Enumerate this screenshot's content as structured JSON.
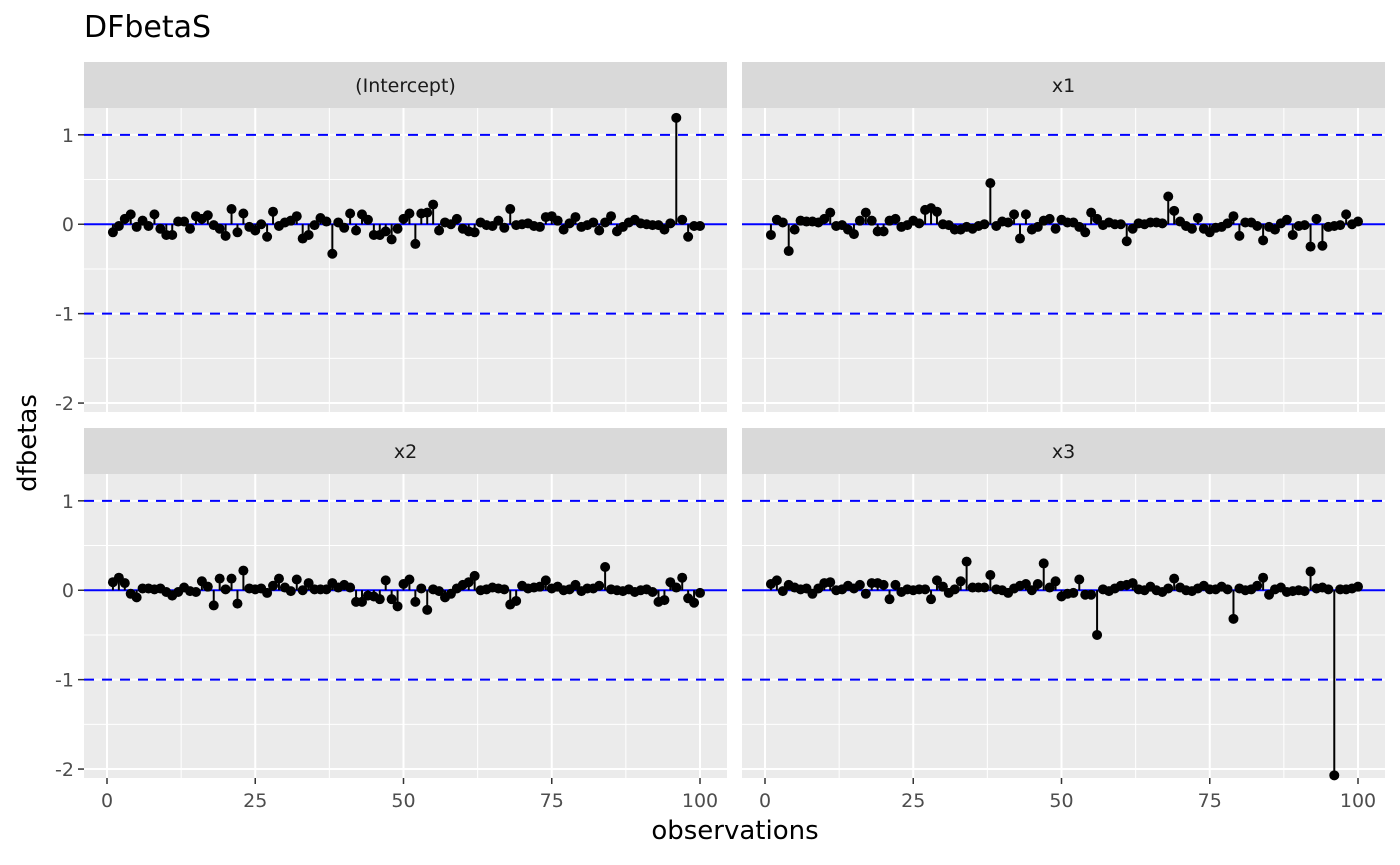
{
  "chart_data": {
    "type": "scatter",
    "title": "DFbetaS",
    "xlabel": "observations",
    "ylabel": "dfbetas",
    "xlim": [
      0,
      100
    ],
    "ylim": [
      -2.1,
      1.3
    ],
    "x_ticks": [
      0,
      25,
      50,
      75,
      100
    ],
    "y_ticks": [
      -2,
      -1,
      0,
      1
    ],
    "reference_lines": {
      "solid": 0,
      "dashed": [
        -1,
        1
      ],
      "color": "#0000ff"
    },
    "grid": true,
    "panel_background": "#ebebeb",
    "strip_background": "#d9d9d9",
    "point_color": "#000000",
    "panels": [
      {
        "name": "(Intercept)",
        "values": [
          -0.09,
          -0.02,
          0.06,
          0.11,
          -0.03,
          0.04,
          -0.02,
          0.11,
          -0.05,
          -0.12,
          -0.12,
          0.03,
          0.03,
          -0.05,
          0.09,
          0.06,
          0.1,
          -0.01,
          -0.05,
          -0.13,
          0.17,
          -0.09,
          0.12,
          -0.03,
          -0.07,
          0.0,
          -0.14,
          0.14,
          -0.02,
          0.02,
          0.04,
          0.09,
          -0.16,
          -0.12,
          -0.01,
          0.07,
          0.03,
          -0.33,
          0.02,
          -0.04,
          0.12,
          -0.07,
          0.11,
          0.05,
          -0.12,
          -0.12,
          -0.08,
          -0.17,
          -0.05,
          0.06,
          0.12,
          -0.22,
          0.12,
          0.13,
          0.22,
          -0.07,
          0.02,
          0.0,
          0.06,
          -0.05,
          -0.08,
          -0.09,
          0.02,
          -0.01,
          -0.02,
          0.04,
          -0.04,
          0.17,
          -0.01,
          0.0,
          0.01,
          -0.02,
          -0.03,
          0.08,
          0.09,
          0.04,
          -0.06,
          0.01,
          0.08,
          -0.03,
          -0.01,
          0.02,
          -0.07,
          0.02,
          0.09,
          -0.08,
          -0.03,
          0.02,
          0.05,
          0.01,
          0.0,
          -0.01,
          -0.01,
          -0.06,
          0.01,
          1.19,
          0.05,
          -0.14,
          -0.02,
          -0.02
        ]
      },
      {
        "name": "x1",
        "values": [
          -0.12,
          0.05,
          0.02,
          -0.3,
          -0.06,
          0.04,
          0.03,
          0.03,
          0.02,
          0.06,
          0.13,
          -0.02,
          -0.01,
          -0.06,
          -0.11,
          0.04,
          0.13,
          0.04,
          -0.08,
          -0.08,
          0.04,
          0.06,
          -0.03,
          -0.01,
          0.04,
          0.01,
          0.16,
          0.18,
          0.14,
          0.0,
          -0.01,
          -0.06,
          -0.06,
          -0.03,
          -0.05,
          -0.02,
          0.0,
          0.46,
          -0.02,
          0.03,
          0.02,
          0.11,
          -0.16,
          0.11,
          -0.06,
          -0.03,
          0.04,
          0.06,
          -0.05,
          0.05,
          0.02,
          0.02,
          -0.03,
          -0.09,
          0.13,
          0.06,
          -0.01,
          0.02,
          0.0,
          0.0,
          -0.19,
          -0.05,
          0.01,
          0.0,
          0.02,
          0.02,
          0.01,
          0.31,
          0.15,
          0.03,
          -0.02,
          -0.05,
          0.07,
          -0.05,
          -0.09,
          -0.04,
          -0.03,
          0.01,
          0.09,
          -0.13,
          0.02,
          0.02,
          -0.02,
          -0.18,
          -0.03,
          -0.06,
          0.01,
          0.05,
          -0.12,
          -0.02,
          -0.01,
          -0.25,
          0.06,
          -0.24,
          -0.03,
          -0.02,
          -0.01,
          0.11,
          0.0,
          0.03
        ]
      },
      {
        "name": "x2",
        "values": [
          0.09,
          0.14,
          0.08,
          -0.04,
          -0.08,
          0.02,
          0.02,
          0.01,
          0.02,
          -0.02,
          -0.06,
          -0.02,
          0.03,
          -0.01,
          -0.02,
          0.1,
          0.04,
          -0.17,
          0.13,
          0.01,
          0.13,
          -0.15,
          0.22,
          0.02,
          0.01,
          0.02,
          -0.03,
          0.05,
          0.13,
          0.03,
          -0.01,
          0.12,
          0.0,
          0.08,
          0.01,
          0.01,
          0.01,
          0.08,
          0.03,
          0.06,
          0.03,
          -0.13,
          -0.13,
          -0.06,
          -0.07,
          -0.1,
          0.11,
          -0.1,
          -0.18,
          0.07,
          0.12,
          -0.13,
          0.02,
          -0.22,
          0.01,
          -0.01,
          -0.08,
          -0.04,
          0.02,
          0.06,
          0.09,
          0.16,
          0.0,
          0.01,
          0.03,
          0.02,
          0.01,
          -0.16,
          -0.12,
          0.05,
          0.02,
          0.03,
          0.04,
          0.11,
          0.02,
          0.04,
          0.0,
          0.01,
          0.06,
          -0.01,
          0.02,
          0.02,
          0.05,
          0.26,
          0.01,
          0.0,
          -0.01,
          0.01,
          -0.02,
          0.0,
          0.01,
          -0.02,
          -0.13,
          -0.11,
          0.09,
          0.03,
          0.14,
          -0.09,
          -0.14,
          -0.03
        ]
      },
      {
        "name": "x3",
        "values": [
          0.07,
          0.11,
          -0.01,
          0.06,
          0.03,
          0.01,
          0.02,
          -0.04,
          0.02,
          0.08,
          0.09,
          0.0,
          0.01,
          0.05,
          0.02,
          0.06,
          -0.04,
          0.08,
          0.08,
          0.06,
          -0.1,
          0.06,
          -0.02,
          0.01,
          0.0,
          0.01,
          0.01,
          -0.1,
          0.11,
          0.04,
          -0.03,
          0.01,
          0.1,
          0.32,
          0.03,
          0.03,
          0.03,
          0.17,
          0.01,
          0.0,
          -0.03,
          0.02,
          0.05,
          0.07,
          0.0,
          0.07,
          0.3,
          0.03,
          0.1,
          -0.07,
          -0.04,
          -0.03,
          0.12,
          -0.05,
          -0.05,
          -0.5,
          0.01,
          -0.01,
          0.02,
          0.05,
          0.06,
          0.08,
          0.01,
          0.0,
          0.04,
          0.0,
          -0.02,
          0.02,
          0.13,
          0.03,
          0.0,
          -0.01,
          0.02,
          0.05,
          0.01,
          0.01,
          0.04,
          0.01,
          -0.32,
          0.02,
          0.0,
          0.01,
          0.05,
          0.14,
          -0.05,
          0.01,
          0.03,
          -0.02,
          -0.01,
          0.0,
          -0.01,
          0.21,
          0.02,
          0.03,
          0.01,
          -2.07,
          0.01,
          0.01,
          0.02,
          0.04
        ]
      }
    ]
  }
}
